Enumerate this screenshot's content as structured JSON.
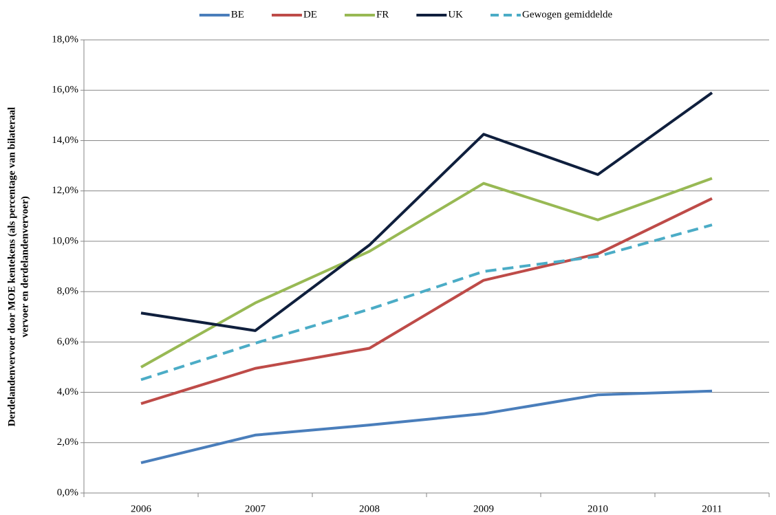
{
  "chart_data": {
    "type": "line",
    "ylabel": [
      "Derdelandenvervoer door MOE kentekens (als percentage van bilateraal",
      "vervoer en derdelandenvervoer)"
    ],
    "categories": [
      "2006",
      "2007",
      "2008",
      "2009",
      "2010",
      "2011"
    ],
    "series": [
      {
        "name": "BE",
        "color": "#4a7ebb",
        "values": [
          1.2,
          2.3,
          2.7,
          3.15,
          3.9,
          4.05
        ]
      },
      {
        "name": "DE",
        "color": "#be4b48",
        "values": [
          3.55,
          4.95,
          5.75,
          8.45,
          9.5,
          11.7
        ]
      },
      {
        "name": "FR",
        "color": "#98b954",
        "values": [
          5.0,
          7.55,
          9.6,
          12.3,
          10.85,
          12.5
        ]
      },
      {
        "name": "UK",
        "color": "#0f1f3d",
        "values": [
          7.15,
          6.45,
          9.85,
          14.25,
          12.65,
          15.9
        ]
      },
      {
        "name": "Gewogen gemiddelde",
        "color": "#4bacc6",
        "dashed": true,
        "values": [
          4.5,
          5.95,
          7.3,
          8.8,
          9.4,
          10.65
        ]
      }
    ],
    "ylim": [
      0,
      18
    ],
    "yticks": [
      {
        "value": 0,
        "label": "0,0%"
      },
      {
        "value": 2,
        "label": "2,0%"
      },
      {
        "value": 4,
        "label": "4,0%"
      },
      {
        "value": 6,
        "label": "6,0%"
      },
      {
        "value": 8,
        "label": "8,0%"
      },
      {
        "value": 10,
        "label": "10,0%"
      },
      {
        "value": 12,
        "label": "12,0%"
      },
      {
        "value": 14,
        "label": "14,0%"
      },
      {
        "value": 16,
        "label": "16,0%"
      },
      {
        "value": 18,
        "label": "18,0%"
      }
    ],
    "grid": true,
    "legend": "top"
  }
}
